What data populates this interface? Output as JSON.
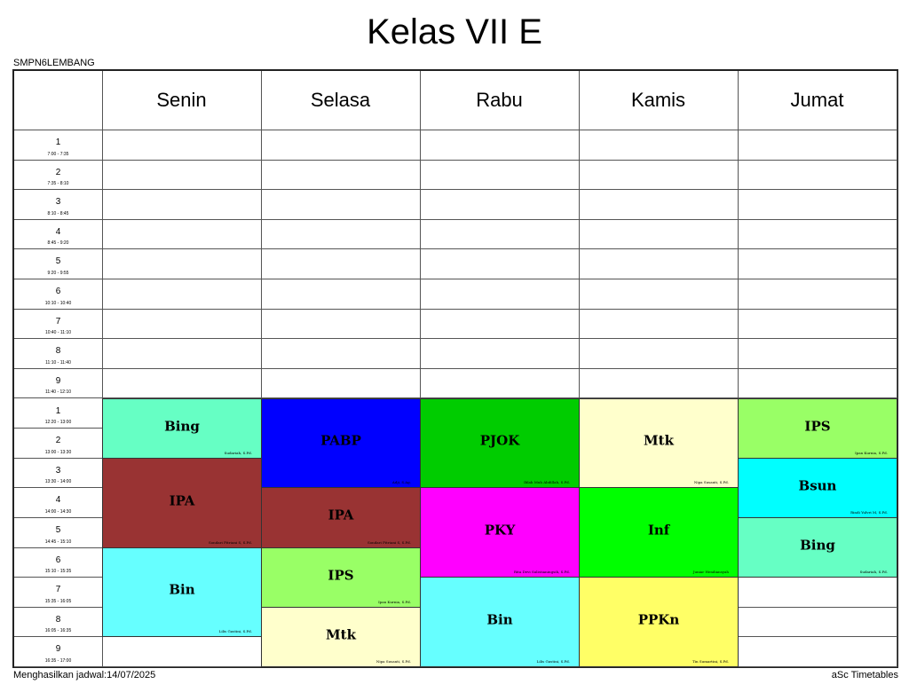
{
  "title": "Kelas VII E",
  "school": "SMPN6LEMBANG",
  "footer": {
    "generated": "Menghasilkan jadwal:14/07/2025",
    "brand": "aSc Timetables"
  },
  "days": [
    "Senin",
    "Selasa",
    "Rabu",
    "Kamis",
    "Jumat"
  ],
  "periods": [
    {
      "num": "1",
      "time": "7:00 - 7:35"
    },
    {
      "num": "2",
      "time": "7:35 - 8:10"
    },
    {
      "num": "3",
      "time": "8:10 - 8:45"
    },
    {
      "num": "4",
      "time": "8:45 - 9:20"
    },
    {
      "num": "5",
      "time": "9:20 - 9:55"
    },
    {
      "num": "6",
      "time": "10:10 - 10:40"
    },
    {
      "num": "7",
      "time": "10:40 - 11:10"
    },
    {
      "num": "8",
      "time": "11:10 - 11:40"
    },
    {
      "num": "9",
      "time": "11:40 - 12:10"
    },
    {
      "num": "1",
      "time": "12:20 - 13:00"
    },
    {
      "num": "2",
      "time": "13:00 - 13:30"
    },
    {
      "num": "3",
      "time": "13:30 - 14:00"
    },
    {
      "num": "4",
      "time": "14:00 - 14:30"
    },
    {
      "num": "5",
      "time": "14:45 - 15:10"
    },
    {
      "num": "6",
      "time": "15:10 - 15:35"
    },
    {
      "num": "7",
      "time": "15:35 - 16:05"
    },
    {
      "num": "8",
      "time": "16:05 - 16:35"
    },
    {
      "num": "9",
      "time": "16:35 - 17:00"
    }
  ],
  "lessons": [
    {
      "day": 0,
      "start": 9,
      "span": 2,
      "subject": "Bing",
      "teacher": "Sudariah, S.Pd.",
      "color": "#66ffc4"
    },
    {
      "day": 0,
      "start": 11,
      "span": 3,
      "subject": "IPA",
      "teacher": "Sondari Fitriani S, S.Pd.",
      "color": "#993333"
    },
    {
      "day": 0,
      "start": 14,
      "span": 3,
      "subject": "Bin",
      "teacher": "Lilis Gustini, S.Pd.",
      "color": "#66ffff"
    },
    {
      "day": 1,
      "start": 9,
      "span": 3,
      "subject": "PABP",
      "teacher": "Adji, S.Ag.",
      "color": "#0000ff"
    },
    {
      "day": 1,
      "start": 12,
      "span": 2,
      "subject": "IPA",
      "teacher": "Sondari Fitriani S, S.Pd.",
      "color": "#993333"
    },
    {
      "day": 1,
      "start": 14,
      "span": 2,
      "subject": "IPS",
      "teacher": "Ipan Kurnia, S.Pd.",
      "color": "#99ff66"
    },
    {
      "day": 1,
      "start": 16,
      "span": 2,
      "subject": "Mtk",
      "teacher": "Nipa Susanti, S.Pd.",
      "color": "#ffffcc"
    },
    {
      "day": 2,
      "start": 9,
      "span": 3,
      "subject": "PJOK",
      "teacher": "Iblah Muh Abdillah, S.Pd.",
      "color": "#00cc00"
    },
    {
      "day": 2,
      "start": 12,
      "span": 3,
      "subject": "PKY",
      "teacher": "Rita Devi Sulistianingsih, S.Pd.",
      "color": "#ff00ff"
    },
    {
      "day": 2,
      "start": 15,
      "span": 3,
      "subject": "Bin",
      "teacher": "Lilis Gustini, S.Pd.",
      "color": "#66ffff"
    },
    {
      "day": 3,
      "start": 9,
      "span": 3,
      "subject": "Mtk",
      "teacher": "Nipa Susanti, S.Pd.",
      "color": "#ffffcc"
    },
    {
      "day": 3,
      "start": 12,
      "span": 3,
      "subject": "Inf",
      "teacher": "Juniar Hendiansyah",
      "color": "#00ff00"
    },
    {
      "day": 3,
      "start": 15,
      "span": 3,
      "subject": "PPKn",
      "teacher": "Tin Sumartini, S.Pd.",
      "color": "#ffff66"
    },
    {
      "day": 4,
      "start": 9,
      "span": 2,
      "subject": "IPS",
      "teacher": "Ipan Kurnia, S.Pd.",
      "color": "#99ff66"
    },
    {
      "day": 4,
      "start": 11,
      "span": 2,
      "subject": "Bsun",
      "teacher": "Rindi Yulvri M, S.Pd.",
      "color": "#00ffff"
    },
    {
      "day": 4,
      "start": 13,
      "span": 2,
      "subject": "Bing",
      "teacher": "Sudariah, S.Pd.",
      "color": "#66ffc4"
    }
  ]
}
